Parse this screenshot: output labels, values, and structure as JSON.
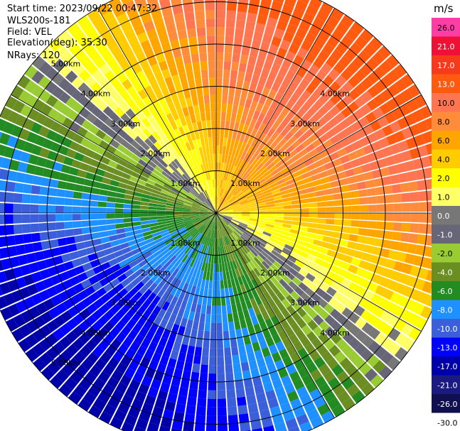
{
  "info": {
    "start_time": "Start time: 2023/09/22 00:47:32",
    "instrument": "WLS200s-181",
    "field": "Field: VEL",
    "elevation": "Elevation(deg): 35.30",
    "nrays": "NRays: 120"
  },
  "chart_data": {
    "type": "heatmap",
    "plot": "PPI",
    "field": "VEL",
    "units": "m/s",
    "elevation_deg": 35.3,
    "n_rays": 120,
    "max_range_km": 5.6,
    "range_rings_km": [
      1,
      2,
      3,
      4,
      5
    ],
    "range_labels": [
      "1.00km",
      "2.00km",
      "3.00km",
      "4.00km",
      "5.00km"
    ],
    "spokes_deg": [
      0,
      30,
      60,
      90,
      120,
      150,
      180,
      210,
      240,
      270,
      300,
      330
    ],
    "colorbar": {
      "unit_label": "m/s",
      "ticks": [
        "26.0",
        "21.0",
        "17.0",
        "13.0",
        "10.0",
        "8.0",
        "6.0",
        "4.0",
        "2.0",
        "1.0",
        "0.0",
        "-1.0",
        "-2.0",
        "-4.0",
        "-6.0",
        "-8.0",
        "-10.0",
        "-13.0",
        "-17.0",
        "-21.0",
        "-26.0",
        "-30.0"
      ],
      "colors": [
        "#ff3da6",
        "#ee1133",
        "#f83a1c",
        "#ff5a10",
        "#ff7550",
        "#ff8c3a",
        "#ffa500",
        "#ffcc00",
        "#ffff00",
        "#ffff66",
        "#777777",
        "#666677",
        "#99cc33",
        "#6b8e23",
        "#228b22",
        "#1e90ff",
        "#3b5fdb",
        "#0000ff",
        "#0000aa",
        "#1a1a80",
        "#101050",
        "#ffffff"
      ]
    }
  }
}
